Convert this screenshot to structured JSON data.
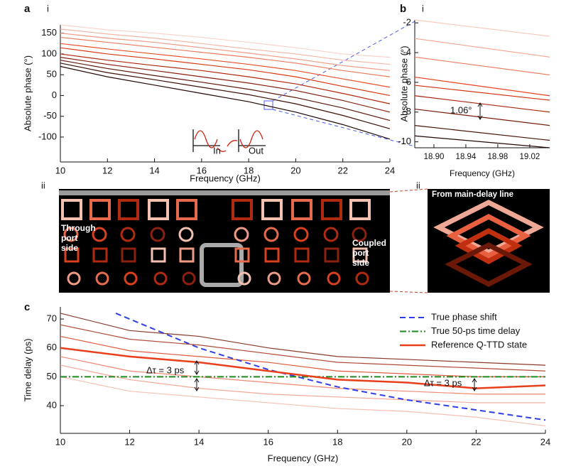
{
  "panel_labels": {
    "a": "a",
    "a_i": "i",
    "a_ii": "ii",
    "b": "b",
    "b_i": "i",
    "b_ii": "ii",
    "c": "c"
  },
  "images": {
    "through_label": [
      "Through",
      "port",
      "side"
    ],
    "coupled_label": [
      "Coupled",
      "port",
      "side"
    ],
    "inset_label": "From main-delay line"
  },
  "chart_data": [
    {
      "type": "line",
      "xlabel": "Frequency (GHz)",
      "ylabel": "Absolute phase (°)",
      "x": [
        10,
        12,
        14,
        16,
        18,
        20,
        22,
        24
      ],
      "xlim": [
        10,
        24
      ],
      "xticks": [
        10,
        12,
        14,
        16,
        18,
        20,
        22,
        24
      ],
      "ylim": [
        -160,
        170
      ],
      "yticks": [
        -100,
        -50,
        0,
        50,
        100,
        150
      ],
      "annotations": [
        "In",
        "Out"
      ],
      "series": [
        {
          "color": "#f8d3ca",
          "values": [
            170,
            158,
            150,
            140,
            128,
            115,
            100,
            92
          ]
        },
        {
          "color": "#f4b6a6",
          "values": [
            160,
            148,
            138,
            125,
            112,
            100,
            85,
            75
          ]
        },
        {
          "color": "#f09a84",
          "values": [
            150,
            138,
            128,
            115,
            102,
            88,
            72,
            60
          ]
        },
        {
          "color": "#ec7b5e",
          "values": [
            140,
            128,
            116,
            104,
            92,
            78,
            60,
            45
          ]
        },
        {
          "color": "#e8502c",
          "values": [
            125,
            112,
            100,
            88,
            75,
            60,
            40,
            20
          ]
        },
        {
          "color": "#d83a14",
          "values": [
            115,
            100,
            88,
            75,
            62,
            45,
            22,
            0
          ]
        },
        {
          "color": "#b0280c",
          "values": [
            100,
            85,
            72,
            60,
            45,
            28,
            5,
            -20
          ]
        },
        {
          "color": "#86200c",
          "values": [
            92,
            75,
            60,
            45,
            30,
            12,
            -12,
            -40
          ]
        },
        {
          "color": "#5e180a",
          "values": [
            85,
            65,
            48,
            32,
            15,
            -5,
            -30,
            -60
          ]
        },
        {
          "color": "#3e1008",
          "values": [
            78,
            55,
            38,
            20,
            2,
            -20,
            -48,
            -80
          ]
        },
        {
          "color": "#220806",
          "values": [
            70,
            45,
            25,
            5,
            -15,
            -40,
            -70,
            -105
          ]
        }
      ]
    },
    {
      "type": "line",
      "xlabel": "Frequency (GHz)",
      "ylabel": "Absolute phase (°)",
      "x": [
        18.876,
        19.045
      ],
      "xlim": [
        18.876,
        19.045
      ],
      "xticks": [
        {
          "value": 18.9,
          "label": "18.90"
        },
        {
          "value": 18.94,
          "label": "18.94"
        },
        {
          "value": 18.98,
          "label": "18.98"
        },
        {
          "value": 19.02,
          "label": "19.02"
        }
      ],
      "ylim": [
        -10.4,
        -1.8
      ],
      "yticks": [
        -10,
        -8,
        -6,
        -4,
        -2
      ],
      "annotations": [
        "1.06°"
      ],
      "series": [
        {
          "color": "#f8c8bc",
          "values": [
            -1.8,
            -2.9
          ]
        },
        {
          "color": "#f4a490",
          "values": [
            -3.05,
            -4.3
          ]
        },
        {
          "color": "#ee7e62",
          "values": [
            -4.3,
            -5.5
          ]
        },
        {
          "color": "#e8401c",
          "values": [
            -5.65,
            -6.9
          ]
        },
        {
          "color": "#d0300e",
          "values": [
            -6.2,
            -7.2
          ]
        },
        {
          "color": "#a8240c",
          "values": [
            -6.9,
            -8.0
          ]
        },
        {
          "color": "#7a1c0a",
          "values": [
            -7.8,
            -8.9
          ]
        },
        {
          "color": "#4a1208",
          "values": [
            -8.9,
            -9.9
          ]
        },
        {
          "color": "#220806",
          "values": [
            -9.6,
            -10.4
          ]
        }
      ]
    },
    {
      "type": "line",
      "xlabel": "Frequency (GHz)",
      "ylabel": "Time delay (ps)",
      "x": [
        10,
        12,
        14,
        16,
        18,
        20,
        22,
        24
      ],
      "xlim": [
        10,
        24
      ],
      "xticks": [
        10,
        12,
        14,
        16,
        18,
        20,
        22,
        24
      ],
      "ylim": [
        30.4,
        74.2
      ],
      "yticks": [
        40,
        50,
        60,
        70
      ],
      "legend": "upper right",
      "annotations": [
        "Δτ = 3 ps",
        "Δτ = 3 ps"
      ],
      "series": [
        {
          "color": "#8a3a2a",
          "values": [
            72,
            66,
            64,
            60,
            57,
            56,
            55,
            54
          ]
        },
        {
          "color": "#b04a36",
          "values": [
            68,
            63,
            61,
            58,
            55,
            54,
            53,
            52
          ]
        },
        {
          "color": "#e05a3e",
          "values": [
            64,
            59,
            57,
            55,
            52,
            51,
            50,
            50
          ]
        },
        {
          "color": "#f08a74",
          "values": [
            57,
            52,
            50,
            48,
            46,
            45,
            44,
            44
          ]
        },
        {
          "color": "#f4a898",
          "values": [
            54,
            49,
            46,
            44,
            43,
            42,
            41,
            41
          ]
        },
        {
          "color": "#f7c0b4",
          "values": [
            50,
            45,
            43,
            41,
            39,
            38,
            36,
            33
          ]
        },
        {
          "name": "True phase shift",
          "color": "#2f3ee8",
          "dash": "dashed",
          "width": 2,
          "x": [
            11.6,
            12,
            14,
            16,
            18,
            20,
            22,
            24
          ],
          "values": [
            72,
            70,
            60,
            52.5,
            46.5,
            42,
            38.5,
            35
          ]
        },
        {
          "name": "True 50-ps time delay",
          "color": "#1e8a1e",
          "dash": "dashdot",
          "width": 2,
          "values": [
            50,
            50,
            50,
            50,
            50,
            50,
            50,
            50
          ]
        },
        {
          "name": "Reference Q-TTD state",
          "color": "#e8401c",
          "width": 2.5,
          "values": [
            60,
            57,
            55,
            52,
            49,
            48,
            46,
            47
          ]
        }
      ]
    }
  ]
}
